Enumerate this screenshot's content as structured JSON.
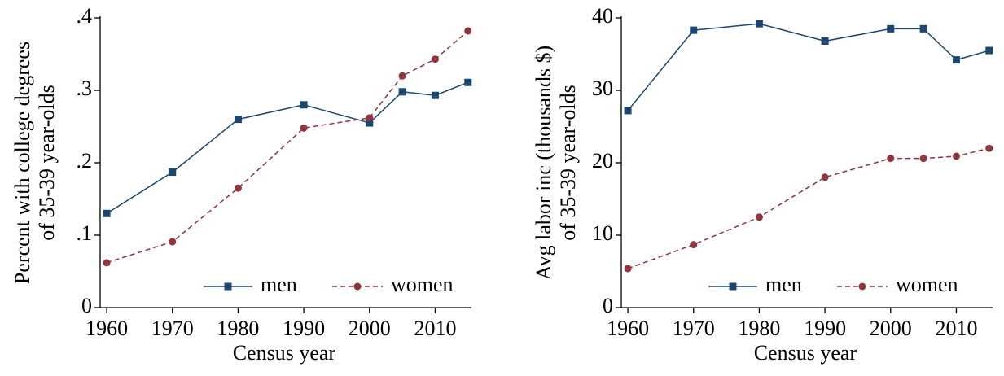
{
  "chart_data": [
    {
      "type": "line",
      "ylabel": [
        "Percent with college degrees",
        "of 35-39 year-olds"
      ],
      "xlabel": "Census year",
      "x": [
        1960,
        1970,
        1980,
        1990,
        2000,
        2005,
        2010,
        2015
      ],
      "series": [
        {
          "name": "men",
          "color": "#1a476f",
          "marker": "square",
          "dash": false,
          "values": [
            0.13,
            0.187,
            0.26,
            0.28,
            0.255,
            0.298,
            0.293,
            0.311
          ]
        },
        {
          "name": "women",
          "color": "#90353b",
          "marker": "circle",
          "dash": true,
          "values": [
            0.062,
            0.091,
            0.165,
            0.248,
            0.262,
            0.32,
            0.343,
            0.382
          ]
        }
      ],
      "xlim": [
        1959,
        2018
      ],
      "xticks": [
        1960,
        1970,
        1980,
        1990,
        2000,
        2010
      ],
      "ylim": [
        0,
        0.4
      ],
      "yticks": [
        0,
        {
          "value": 0.1,
          "label": ".1"
        },
        {
          "value": 0.2,
          "label": ".2"
        },
        {
          "value": 0.3,
          "label": ".3"
        },
        {
          "value": 0.4,
          "label": ".4"
        }
      ],
      "grid": false,
      "legend": "lower right"
    },
    {
      "type": "line",
      "ylabel": [
        "Avg labor inc (thousands $)",
        "of 35-39 year-olds"
      ],
      "xlabel": "Census year",
      "x": [
        1960,
        1970,
        1980,
        1990,
        2000,
        2005,
        2010,
        2015
      ],
      "series": [
        {
          "name": "men",
          "color": "#1a476f",
          "marker": "square",
          "dash": false,
          "values": [
            27.2,
            38.3,
            39.2,
            36.8,
            38.5,
            38.5,
            34.2,
            35.5
          ]
        },
        {
          "name": "women",
          "color": "#90353b",
          "marker": "circle",
          "dash": true,
          "values": [
            5.4,
            8.7,
            12.5,
            18.0,
            20.6,
            20.6,
            20.9,
            22.0
          ]
        }
      ],
      "xlim": [
        1959,
        2018
      ],
      "xticks": [
        1960,
        1970,
        1980,
        1990,
        2000,
        2010
      ],
      "ylim": [
        0,
        40
      ],
      "yticks": [
        0,
        10,
        20,
        30,
        40
      ],
      "grid": false,
      "legend": "lower right"
    }
  ]
}
